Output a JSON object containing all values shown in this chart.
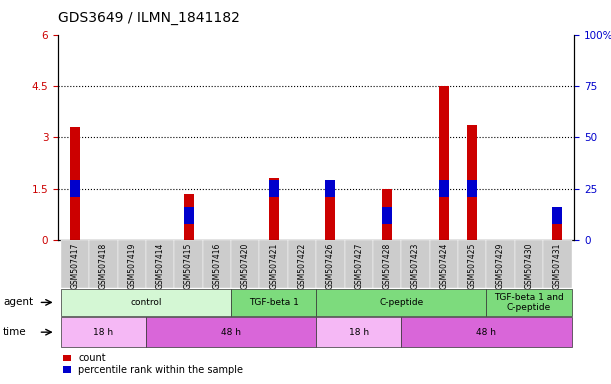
{
  "title": "GDS3649 / ILMN_1841182",
  "samples": [
    "GSM507417",
    "GSM507418",
    "GSM507419",
    "GSM507414",
    "GSM507415",
    "GSM507416",
    "GSM507420",
    "GSM507421",
    "GSM507422",
    "GSM507426",
    "GSM507427",
    "GSM507428",
    "GSM507423",
    "GSM507424",
    "GSM507425",
    "GSM507429",
    "GSM507430",
    "GSM507431"
  ],
  "count_values": [
    3.3,
    0.0,
    0.0,
    0.0,
    1.35,
    0.0,
    0.0,
    1.8,
    0.0,
    1.48,
    0.0,
    1.5,
    0.0,
    4.5,
    3.35,
    0.0,
    0.0,
    0.6
  ],
  "percentile_values_pct": [
    25,
    0,
    0,
    0,
    12,
    0,
    0,
    25,
    0,
    25,
    0,
    12,
    0,
    25,
    25,
    0,
    0,
    12
  ],
  "ylim_left": [
    0,
    6
  ],
  "ylim_right": [
    0,
    100
  ],
  "yticks_left": [
    0,
    1.5,
    3.0,
    4.5,
    6.0
  ],
  "yticks_right": [
    0,
    25,
    50,
    75,
    100
  ],
  "ytick_labels_left": [
    "0",
    "1.5",
    "3",
    "4.5",
    "6"
  ],
  "ytick_labels_right": [
    "0",
    "25",
    "50",
    "75",
    "100%"
  ],
  "hline_values": [
    1.5,
    3.0,
    4.5
  ],
  "agent_groups": [
    {
      "label": "control",
      "start": 0,
      "end": 5,
      "color": "#d4f7d4"
    },
    {
      "label": "TGF-beta 1",
      "start": 6,
      "end": 8,
      "color": "#7ddb7d"
    },
    {
      "label": "C-peptide",
      "start": 9,
      "end": 14,
      "color": "#7ddb7d"
    },
    {
      "label": "TGF-beta 1 and\nC-peptide",
      "start": 15,
      "end": 17,
      "color": "#7ddb7d"
    }
  ],
  "time_groups": [
    {
      "label": "18 h",
      "start": 0,
      "end": 2,
      "color": "#f5b8f5"
    },
    {
      "label": "48 h",
      "start": 3,
      "end": 8,
      "color": "#d966d9"
    },
    {
      "label": "18 h",
      "start": 9,
      "end": 11,
      "color": "#f5b8f5"
    },
    {
      "label": "48 h",
      "start": 12,
      "end": 17,
      "color": "#d966d9"
    }
  ],
  "bar_color": "#cc0000",
  "percentile_color": "#0000cc",
  "bar_width": 0.35,
  "pct_bar_width": 0.35,
  "pct_bar_height": 0.08,
  "bg_color": "#ffffff",
  "plot_bg_color": "#ffffff",
  "tick_color_left": "#cc0000",
  "tick_color_right": "#0000cc",
  "title_fontsize": 10,
  "sample_fontsize": 5.5,
  "row_fontsize": 7.5,
  "legend_fontsize": 7,
  "agent_label": "agent",
  "time_label": "time"
}
